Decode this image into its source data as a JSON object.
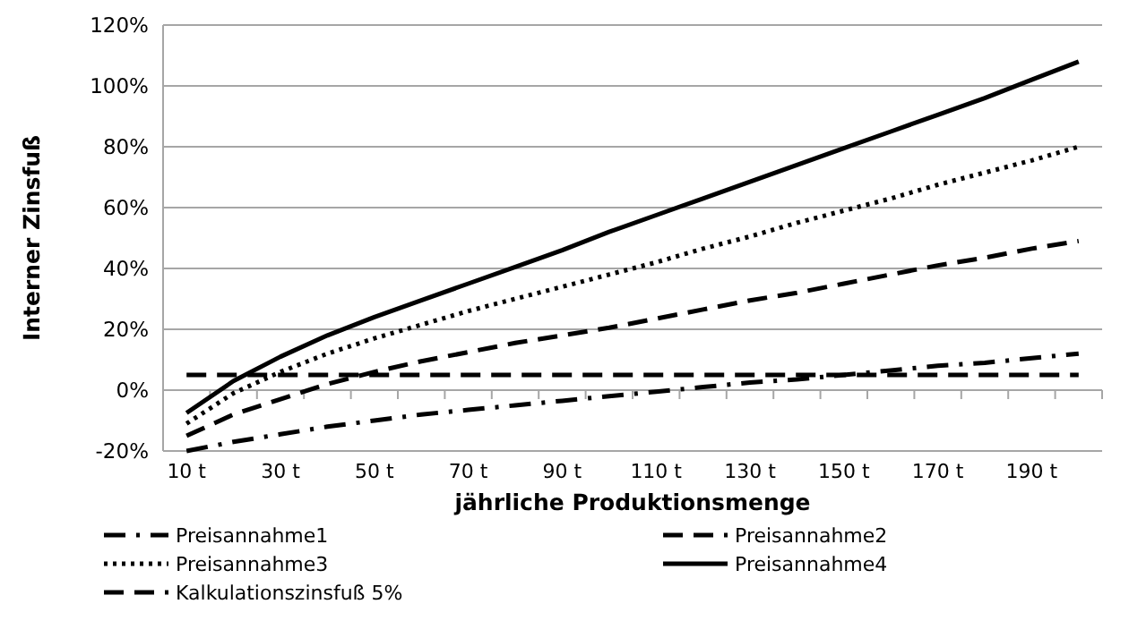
{
  "chart_data": {
    "type": "line",
    "xlabel": "jährliche Produktionsmenge",
    "ylabel": "Interner Zinsfuß",
    "categories": [
      "10 t",
      null,
      "30 t",
      null,
      "50 t",
      null,
      "70 t",
      null,
      "90 t",
      null,
      "110 t",
      null,
      "130 t",
      null,
      "150 t",
      null,
      "170 t",
      null,
      "190 t",
      null
    ],
    "series": [
      {
        "name": "Preisannahme1",
        "color": "#000000",
        "line_style": "dashdot",
        "values": [
          -20,
          -17,
          -14.5,
          -12,
          -10,
          -8,
          -6.5,
          -5,
          -3.5,
          -2,
          -0.5,
          1,
          2.5,
          3.5,
          5,
          6.5,
          8,
          9,
          10.5,
          12
        ]
      },
      {
        "name": "Preisannahme2",
        "color": "#000000",
        "line_style": "dashed",
        "values": [
          -15,
          -8,
          -3,
          2,
          6,
          9.5,
          12.5,
          15.5,
          18,
          20.5,
          23.5,
          26.5,
          29.5,
          32,
          35,
          38,
          41,
          43.5,
          46.5,
          49
        ]
      },
      {
        "name": "Preisannahme3",
        "color": "#000000",
        "line_style": "dotted",
        "values": [
          -11,
          -1,
          6,
          12,
          17,
          21.5,
          26,
          30,
          34,
          38,
          42,
          46.5,
          50.5,
          55,
          59,
          63,
          67.5,
          71.5,
          75.5,
          80
        ]
      },
      {
        "name": "Preisannahme4",
        "color": "#000000",
        "line_style": "solid",
        "values": [
          -7.5,
          3,
          11,
          18,
          24,
          29.5,
          35,
          40.5,
          46,
          52,
          57.5,
          63,
          68.5,
          74,
          79.5,
          85,
          90.5,
          96,
          102,
          108
        ]
      },
      {
        "name": "Kalkulationszinsfuß  5%",
        "color": "#000000",
        "line_style": "dashed",
        "values": [
          5,
          5,
          5,
          5,
          5,
          5,
          5,
          5,
          5,
          5,
          5,
          5,
          5,
          5,
          5,
          5,
          5,
          5,
          5,
          5
        ]
      }
    ],
    "ylim": [
      -20,
      120
    ],
    "yticks": [
      {
        "value": -20,
        "label": "-20%"
      },
      {
        "value": 0,
        "label": "0%"
      },
      {
        "value": 20,
        "label": "20%"
      },
      {
        "value": 40,
        "label": "40%"
      },
      {
        "value": 60,
        "label": "60%"
      },
      {
        "value": 80,
        "label": "80%"
      },
      {
        "value": 100,
        "label": "100%"
      },
      {
        "value": 120,
        "label": "120%"
      }
    ],
    "grid": "y",
    "legend": "bottom",
    "marker": "none"
  }
}
